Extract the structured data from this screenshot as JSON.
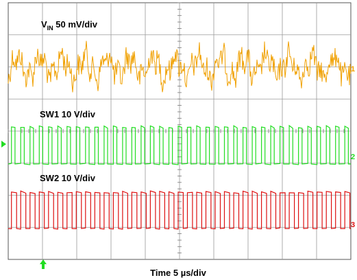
{
  "chart_data": {
    "type": "line",
    "title": "",
    "xlabel": "Time 5 µs/div",
    "grid": true,
    "divisions": {
      "x": 10,
      "y": 8
    },
    "series": [
      {
        "name_main": "V",
        "name_sub": "IN",
        "name_rest": " 50 mV/div",
        "marker": "1",
        "color": "#f0a000",
        "pulses": 0
      },
      {
        "name_main": "SW1 10 V/div",
        "name_sub": "",
        "name_rest": "",
        "marker": "2",
        "color": "#22dd22",
        "pulses": 37
      },
      {
        "name_main": "SW2 10 V/div",
        "name_sub": "",
        "name_rest": "",
        "marker": "3",
        "color": "#dd1111",
        "pulses": 37
      }
    ],
    "trigger_colors": {
      "level": "#22dd22",
      "position": "#22dd22"
    }
  }
}
